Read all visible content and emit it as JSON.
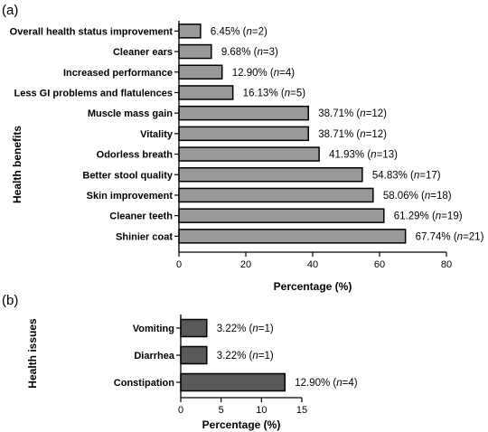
{
  "chart_data": [
    {
      "type": "bar",
      "orientation": "horizontal",
      "panel_label": "(a)",
      "categories": [
        "Overall health status improvement",
        "Cleaner ears",
        "Increased performance",
        "Less GI problems and flatulences",
        "Muscle mass gain",
        "Vitality",
        "Odorless breath",
        "Better stool quality",
        "Skin improvement",
        "Cleaner teeth",
        "Shinier coat"
      ],
      "values": [
        6.45,
        9.68,
        12.9,
        16.13,
        38.71,
        38.71,
        41.93,
        54.83,
        58.06,
        61.29,
        67.74
      ],
      "counts": [
        2,
        3,
        4,
        5,
        12,
        12,
        13,
        17,
        18,
        19,
        21
      ],
      "data_labels": [
        "6.45%",
        "9.68%",
        "12.90%",
        "16.13%",
        "38.71%",
        "38.71%",
        "41.93%",
        "54.83%",
        "58.06%",
        "61.29%",
        "67.74%"
      ],
      "xlabel": "Percentage (%)",
      "ylabel": "Health benefits",
      "xlim": [
        0,
        80
      ],
      "xticks": [
        "0",
        "20",
        "40",
        "60",
        "80"
      ],
      "bar_color": "#999999",
      "grid": false
    },
    {
      "type": "bar",
      "orientation": "horizontal",
      "panel_label": "(b)",
      "categories": [
        "Vomiting",
        "Diarrhea",
        "Constipation"
      ],
      "values": [
        3.22,
        3.22,
        12.9
      ],
      "counts": [
        1,
        1,
        4
      ],
      "data_labels": [
        "3.22%",
        "3.22%",
        "12.90%"
      ],
      "xlabel": "Percentage (%)",
      "ylabel": "Health issues",
      "xlim": [
        0,
        15
      ],
      "xticks": [
        "0",
        "5",
        "10",
        "15"
      ],
      "bar_color": "#595959",
      "grid": false
    }
  ]
}
